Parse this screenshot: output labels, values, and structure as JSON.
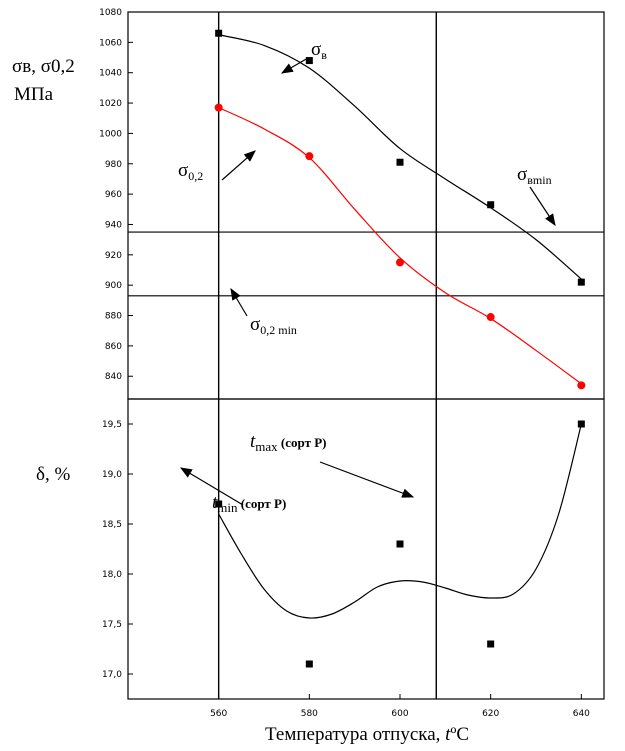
{
  "chart_data": [
    {
      "type": "line",
      "panel": "top",
      "ylabel_line1": "σв, σ0,2",
      "ylabel_line2": "МПа",
      "xlim": [
        540,
        645
      ],
      "ylim": [
        825,
        1080
      ],
      "yticks": [
        840,
        860,
        880,
        900,
        920,
        940,
        960,
        980,
        1000,
        1020,
        1040,
        1060,
        1080
      ],
      "series": [
        {
          "name": "σв",
          "color": "#000000",
          "marker": "square",
          "points": [
            {
              "x": 560,
              "y": 1066
            },
            {
              "x": 580,
              "y": 1048
            },
            {
              "x": 600,
              "y": 981
            },
            {
              "x": 620,
              "y": 953
            },
            {
              "x": 640,
              "y": 902
            }
          ],
          "curve": [
            [
              560,
              1065
            ],
            [
              570,
              1058
            ],
            [
              580,
              1043
            ],
            [
              590,
              1018
            ],
            [
              600,
              990
            ],
            [
              610,
              970
            ],
            [
              620,
              951
            ],
            [
              630,
              930
            ],
            [
              640,
              904
            ]
          ]
        },
        {
          "name": "σ0,2",
          "color": "#ff0000",
          "marker": "circle",
          "points": [
            {
              "x": 560,
              "y": 1017
            },
            {
              "x": 580,
              "y": 985
            },
            {
              "x": 600,
              "y": 915
            },
            {
              "x": 620,
              "y": 879
            },
            {
              "x": 640,
              "y": 834
            }
          ],
          "curve": [
            [
              560,
              1017
            ],
            [
              570,
              1003
            ],
            [
              580,
              984
            ],
            [
              590,
              950
            ],
            [
              600,
              918
            ],
            [
              610,
              895
            ],
            [
              620,
              878
            ],
            [
              630,
              857
            ],
            [
              640,
              835
            ]
          ]
        }
      ],
      "hlines": [
        {
          "y": 935,
          "label_main": "σ",
          "label_sub": "вmin"
        },
        {
          "y": 893,
          "label_main": "σ",
          "label_sub": "0,2 min"
        }
      ],
      "vlines": [
        {
          "x": 560
        },
        {
          "x": 608
        }
      ],
      "annotations": [
        {
          "main": "σ",
          "sub": "в"
        },
        {
          "main": "σ",
          "sub": "0,2"
        }
      ]
    },
    {
      "type": "scatter",
      "panel": "bottom",
      "ylabel": "δ, %",
      "xlabel": "Температура отпуска, tºC",
      "xlabel_main": "Температура отпуска, ",
      "xlabel_italic": "t",
      "xlabel_unit": "ºC",
      "xlim": [
        540,
        645
      ],
      "ylim": [
        16.75,
        19.75
      ],
      "yticks": [
        17.0,
        17.5,
        18.0,
        18.5,
        19.0,
        19.5
      ],
      "ytick_labels": [
        "17,0",
        "17,5",
        "18,0",
        "18,5",
        "19,0",
        "19,5"
      ],
      "xticks": [
        560,
        580,
        600,
        620,
        640
      ],
      "points": [
        {
          "x": 560,
          "y": 18.7
        },
        {
          "x": 580,
          "y": 17.1
        },
        {
          "x": 600,
          "y": 18.3
        },
        {
          "x": 620,
          "y": 17.3
        },
        {
          "x": 640,
          "y": 19.5
        }
      ],
      "curve": [
        [
          560,
          18.6
        ],
        [
          565,
          18.2
        ],
        [
          570,
          17.85
        ],
        [
          575,
          17.63
        ],
        [
          580,
          17.56
        ],
        [
          585,
          17.6
        ],
        [
          590,
          17.72
        ],
        [
          595,
          17.87
        ],
        [
          600,
          17.93
        ],
        [
          605,
          17.92
        ],
        [
          610,
          17.86
        ],
        [
          615,
          17.79
        ],
        [
          620,
          17.76
        ],
        [
          625,
          17.8
        ],
        [
          630,
          18.05
        ],
        [
          635,
          18.6
        ],
        [
          640,
          19.5
        ]
      ],
      "annotations": [
        {
          "main": "t",
          "sub": "max",
          "suffix": " (сорт Р)"
        },
        {
          "main": "t",
          "sub": "min",
          "suffix": " (сорт Р)"
        }
      ]
    }
  ]
}
